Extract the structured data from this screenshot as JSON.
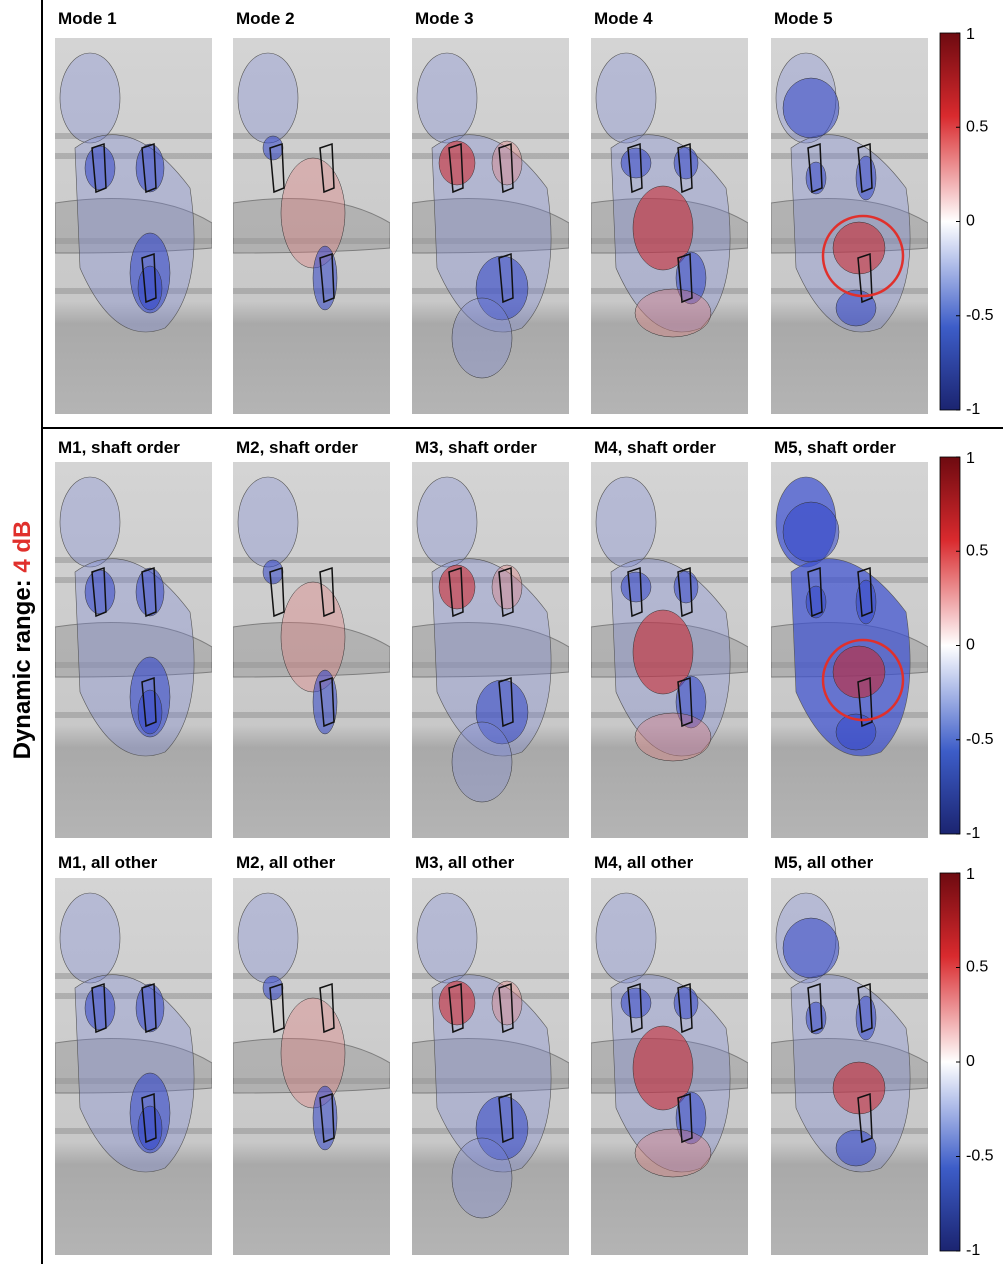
{
  "y_label": {
    "prefix": "Dynamic range: ",
    "highlight": "4 dB"
  },
  "rows": [
    {
      "panels": [
        "Mode 1",
        "Mode 2",
        "Mode 3",
        "Mode 4",
        "Mode 5"
      ],
      "colorbar": {
        "lim": [
          -1,
          1
        ],
        "ticks": [
          1,
          0.5,
          0,
          -0.5,
          -1
        ]
      }
    },
    {
      "panels": [
        "M1, shaft order",
        "M2, shaft order",
        "M3, shaft order",
        "M4, shaft order",
        "M5, shaft order"
      ],
      "colorbar": {
        "lim": [
          -1,
          1
        ],
        "ticks": [
          1,
          0.5,
          0,
          -0.5,
          -1
        ]
      }
    },
    {
      "panels": [
        "M1, all other",
        "M2, all other",
        "M3, all other",
        "M4, all other",
        "M5, all other"
      ],
      "colorbar": {
        "lim": [
          -1,
          1
        ],
        "ticks": [
          1,
          0.5,
          0,
          -0.5,
          -1
        ]
      }
    }
  ]
}
